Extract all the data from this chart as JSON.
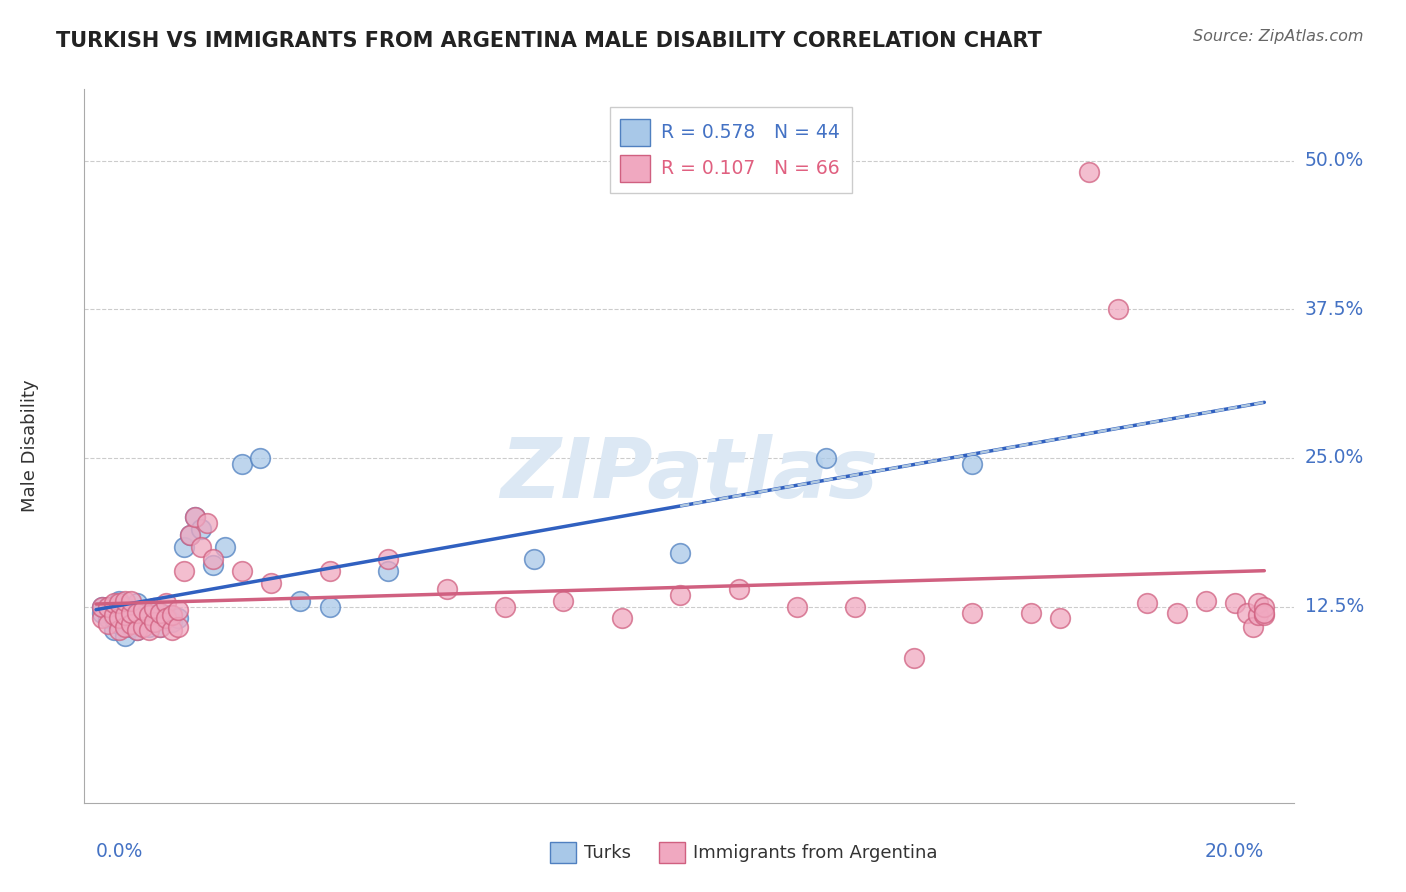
{
  "title": "TURKISH VS IMMIGRANTS FROM ARGENTINA MALE DISABILITY CORRELATION CHART",
  "source": "Source: ZipAtlas.com",
  "ylabel": "Male Disability",
  "legend1_r": "R = 0.578",
  "legend1_n": "N = 44",
  "legend2_r": "R = 0.107",
  "legend2_n": "N = 66",
  "legend_label1": "Turks",
  "legend_label2": "Immigrants from Argentina",
  "turks_color": "#a8c8e8",
  "argentina_color": "#f0a8c0",
  "turks_edge_color": "#5080c0",
  "argentina_edge_color": "#d06080",
  "turks_line_color": "#3060c0",
  "argentina_line_color": "#d06080",
  "dashed_color": "#b0c8e0",
  "ytick_vals": [
    0.125,
    0.25,
    0.375,
    0.5
  ],
  "ytick_labels": [
    "12.5%",
    "25.0%",
    "37.5%",
    "50.0%"
  ],
  "turks_x": [
    0.001,
    0.001,
    0.002,
    0.002,
    0.003,
    0.003,
    0.003,
    0.004,
    0.004,
    0.004,
    0.005,
    0.005,
    0.005,
    0.006,
    0.006,
    0.007,
    0.007,
    0.007,
    0.008,
    0.008,
    0.009,
    0.009,
    0.01,
    0.01,
    0.011,
    0.011,
    0.012,
    0.013,
    0.014,
    0.015,
    0.016,
    0.017,
    0.018,
    0.02,
    0.022,
    0.025,
    0.028,
    0.035,
    0.04,
    0.05,
    0.075,
    0.1,
    0.125,
    0.15
  ],
  "turks_y": [
    0.12,
    0.125,
    0.115,
    0.125,
    0.105,
    0.115,
    0.125,
    0.11,
    0.12,
    0.13,
    0.1,
    0.115,
    0.125,
    0.108,
    0.12,
    0.105,
    0.115,
    0.128,
    0.11,
    0.122,
    0.108,
    0.118,
    0.112,
    0.124,
    0.108,
    0.12,
    0.118,
    0.112,
    0.115,
    0.175,
    0.185,
    0.2,
    0.19,
    0.16,
    0.175,
    0.245,
    0.25,
    0.13,
    0.125,
    0.155,
    0.165,
    0.17,
    0.25,
    0.245
  ],
  "argentina_x": [
    0.001,
    0.001,
    0.002,
    0.002,
    0.003,
    0.003,
    0.004,
    0.004,
    0.004,
    0.005,
    0.005,
    0.005,
    0.006,
    0.006,
    0.006,
    0.007,
    0.007,
    0.008,
    0.008,
    0.009,
    0.009,
    0.01,
    0.01,
    0.011,
    0.011,
    0.012,
    0.012,
    0.013,
    0.013,
    0.014,
    0.014,
    0.015,
    0.016,
    0.017,
    0.018,
    0.019,
    0.02,
    0.025,
    0.03,
    0.04,
    0.05,
    0.06,
    0.07,
    0.08,
    0.09,
    0.1,
    0.11,
    0.12,
    0.13,
    0.14,
    0.15,
    0.16,
    0.165,
    0.17,
    0.175,
    0.18,
    0.185,
    0.19,
    0.195,
    0.197,
    0.198,
    0.199,
    0.199,
    0.2,
    0.2,
    0.2
  ],
  "argentina_y": [
    0.115,
    0.125,
    0.11,
    0.125,
    0.118,
    0.128,
    0.105,
    0.115,
    0.128,
    0.108,
    0.118,
    0.13,
    0.11,
    0.12,
    0.13,
    0.105,
    0.12,
    0.108,
    0.122,
    0.105,
    0.118,
    0.112,
    0.124,
    0.108,
    0.12,
    0.128,
    0.115,
    0.105,
    0.118,
    0.108,
    0.122,
    0.155,
    0.185,
    0.2,
    0.175,
    0.195,
    0.165,
    0.155,
    0.145,
    0.155,
    0.165,
    0.14,
    0.125,
    0.13,
    0.115,
    0.135,
    0.14,
    0.125,
    0.125,
    0.082,
    0.12,
    0.12,
    0.115,
    0.49,
    0.375,
    0.128,
    0.12,
    0.13,
    0.128,
    0.12,
    0.108,
    0.118,
    0.128,
    0.118,
    0.125,
    0.12
  ],
  "xlim": [
    -0.002,
    0.205
  ],
  "ylim": [
    -0.04,
    0.56
  ],
  "background_color": "#ffffff",
  "grid_color": "#cccccc",
  "watermark_color": "#dce8f4",
  "watermark_text": "ZIPatlas"
}
